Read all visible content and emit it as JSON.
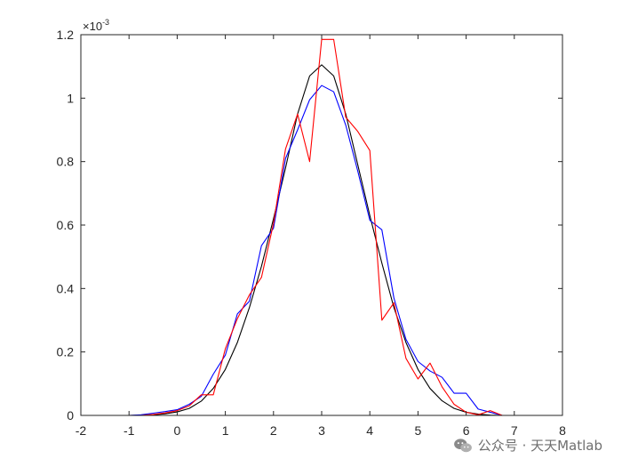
{
  "chart_data": {
    "type": "line",
    "title": "",
    "xlabel": "",
    "ylabel": "",
    "xlim": [
      -2,
      8
    ],
    "ylim": [
      0,
      1.2
    ],
    "y_exponent_label": "×10",
    "y_exponent_power": "-3",
    "x_ticks": [
      "-2",
      "-1",
      "0",
      "1",
      "2",
      "3",
      "4",
      "5",
      "6",
      "7",
      "8"
    ],
    "y_ticks": [
      "0",
      "0.2",
      "0.4",
      "0.6",
      "0.8",
      "1",
      "1.2"
    ],
    "grid": false,
    "legend": "none",
    "series": [
      {
        "color": "#000000",
        "x": [
          -2.0,
          -1.5,
          -1.0,
          -0.5,
          -0.25,
          0.0,
          0.25,
          0.5,
          0.75,
          1.0,
          1.25,
          1.5,
          1.75,
          2.0,
          2.25,
          2.5,
          2.75,
          3.0,
          3.25,
          3.5,
          3.75,
          4.0,
          4.25,
          4.5,
          4.75,
          5.0,
          5.25,
          5.5,
          5.75,
          6.0,
          6.25,
          6.5,
          6.75,
          7.0,
          7.5,
          8.0
        ],
        "y": [
          0.0,
          0.0,
          0.0,
          0.002,
          0.005,
          0.011,
          0.022,
          0.045,
          0.085,
          0.145,
          0.23,
          0.34,
          0.47,
          0.62,
          0.78,
          0.95,
          1.07,
          1.105,
          1.07,
          0.95,
          0.79,
          0.63,
          0.48,
          0.34,
          0.23,
          0.145,
          0.085,
          0.046,
          0.022,
          0.01,
          0.004,
          0.001,
          0.0,
          0.0,
          0.0,
          0.0
        ]
      },
      {
        "color": "#0000ff",
        "x": [
          -2.0,
          -1.0,
          -0.75,
          -0.5,
          -0.25,
          0.0,
          0.25,
          0.5,
          0.75,
          1.0,
          1.25,
          1.5,
          1.75,
          2.0,
          2.25,
          2.5,
          2.75,
          3.0,
          3.25,
          3.5,
          3.75,
          4.0,
          4.25,
          4.5,
          4.75,
          5.0,
          5.25,
          5.5,
          5.75,
          6.0,
          6.25,
          6.5,
          6.75,
          7.0,
          8.0
        ],
        "y": [
          0.0,
          0.0,
          0.002,
          0.007,
          0.012,
          0.018,
          0.035,
          0.06,
          0.13,
          0.19,
          0.32,
          0.36,
          0.535,
          0.59,
          0.81,
          0.9,
          0.995,
          1.04,
          1.02,
          0.915,
          0.77,
          0.615,
          0.585,
          0.37,
          0.24,
          0.17,
          0.14,
          0.12,
          0.07,
          0.07,
          0.02,
          0.01,
          0.0,
          0.0,
          0.0
        ]
      },
      {
        "color": "#ff0000",
        "x": [
          -2.0,
          -1.0,
          -0.75,
          -0.5,
          -0.25,
          0.0,
          0.25,
          0.5,
          0.75,
          1.0,
          1.25,
          1.5,
          1.75,
          2.0,
          2.25,
          2.5,
          2.75,
          3.0,
          3.25,
          3.5,
          3.75,
          4.0,
          4.25,
          4.5,
          4.75,
          5.0,
          5.25,
          5.5,
          5.75,
          6.0,
          6.25,
          6.5,
          6.75,
          7.0,
          8.0
        ],
        "y": [
          0.0,
          0.0,
          0.0,
          0.003,
          0.008,
          0.015,
          0.03,
          0.065,
          0.065,
          0.21,
          0.305,
          0.38,
          0.435,
          0.605,
          0.84,
          0.95,
          0.8,
          1.185,
          1.185,
          0.94,
          0.895,
          0.835,
          0.3,
          0.355,
          0.18,
          0.115,
          0.165,
          0.09,
          0.035,
          0.01,
          0.002,
          0.015,
          0.0,
          0.0,
          0.0
        ]
      }
    ]
  },
  "watermark": {
    "icon": "wechat-icon",
    "text": "公众号 · 天天Matlab"
  }
}
